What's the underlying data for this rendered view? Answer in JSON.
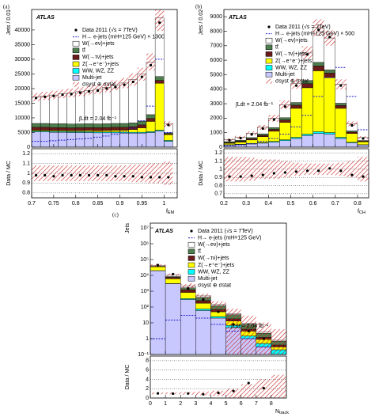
{
  "chart_data": [
    {
      "type": "histogram",
      "panel_label": "(a)",
      "experiment": "ATLAS",
      "luminosity": "∫Ldt = 2.04 fb⁻¹",
      "y_label": "Jets / 0.01",
      "ratio_label": "Data / MC",
      "x_label": {
        "main": "f",
        "sub": "EM"
      },
      "bins": [
        0.7,
        0.72,
        0.74,
        0.76,
        0.78,
        0.8,
        0.82,
        0.84,
        0.86,
        0.88,
        0.9,
        0.92,
        0.94,
        0.96,
        0.98,
        1.0,
        1.02
      ],
      "data": {
        "name": "Data 2011 (√s = 7TeV)",
        "color": "#000000",
        "values": [
          16800,
          17200,
          17500,
          17900,
          18100,
          18600,
          19000,
          19300,
          20000,
          20500,
          21300,
          22300,
          24000,
          28000,
          42500,
          7600
        ]
      },
      "signal": {
        "name": "H→ e-jets (mH=125 GeV) × 1300",
        "color": "#1a1acc",
        "values": [
          2000,
          2000,
          2200,
          2400,
          2600,
          2800,
          3000,
          3400,
          3800,
          4400,
          5200,
          6500,
          9000,
          14000,
          30000,
          5000
        ]
      },
      "series": [
        {
          "name": "W(→eν)+jets",
          "color": "#ffffff",
          "values": [
            9000,
            9400,
            9800,
            10200,
            10600,
            11000,
            11400,
            11800,
            12400,
            13000,
            13800,
            14800,
            16000,
            18000,
            20000,
            3000
          ]
        },
        {
          "name": "tt̄",
          "color": "#4e7d4e",
          "values": [
            1300,
            1300,
            1300,
            1300,
            1300,
            1300,
            1300,
            1300,
            1300,
            1300,
            1300,
            1300,
            1300,
            1300,
            1300,
            300
          ]
        },
        {
          "name": "W(→τν)+jets",
          "color": "#6b1a1a",
          "values": [
            1000,
            1000,
            1000,
            1000,
            1000,
            1000,
            1000,
            1000,
            1000,
            1000,
            1000,
            1000,
            1000,
            1000,
            1000,
            300
          ]
        },
        {
          "name": "Z(→e⁺e⁻)+jets",
          "color": "#ffff00",
          "values": [
            300,
            300,
            300,
            300,
            300,
            350,
            400,
            450,
            500,
            600,
            700,
            900,
            1500,
            3500,
            16000,
            2000
          ]
        },
        {
          "name": "WW, WZ, ZZ",
          "color": "#00ffff",
          "values": [
            300,
            300,
            300,
            300,
            300,
            300,
            300,
            300,
            300,
            300,
            300,
            300,
            300,
            300,
            300,
            300
          ]
        },
        {
          "name": "Multi-jet",
          "color": "#c8c8ff",
          "values": [
            5200,
            5200,
            5100,
            5100,
            5000,
            5000,
            5000,
            4900,
            4900,
            4900,
            4800,
            4800,
            4800,
            5000,
            5500,
            2000
          ]
        }
      ],
      "uncertainty": {
        "name": "σsyst ⊕ σstat",
        "color": "#cc2222",
        "values": [
          0.08,
          0.08,
          0.08,
          0.08,
          0.08,
          0.08,
          0.08,
          0.08,
          0.08,
          0.08,
          0.08,
          0.09,
          0.09,
          0.1,
          0.1,
          0.12
        ]
      },
      "ratio": {
        "values": [
          0.98,
          0.98,
          0.97,
          0.98,
          0.98,
          0.98,
          0.98,
          0.98,
          0.98,
          0.97,
          0.97,
          0.97,
          0.96,
          0.96,
          0.96,
          0.96
        ],
        "ylim": [
          0.75,
          1.25
        ],
        "yticks": [
          0.8,
          0.9,
          1,
          1.1,
          1.2
        ]
      },
      "xlim": [
        0.7,
        1.03
      ],
      "xticks": [
        0.7,
        0.75,
        0.8,
        0.85,
        0.9,
        0.95,
        1
      ],
      "ylim": [
        0,
        47000
      ],
      "yticks": [
        0,
        5000,
        10000,
        15000,
        20000,
        25000,
        30000,
        35000,
        40000
      ],
      "log": false
    },
    {
      "type": "histogram",
      "panel_label": "(b)",
      "experiment": "ATLAS",
      "luminosity": "∫Ldt = 2.04 fb⁻¹",
      "y_label": "Jets / 0.02",
      "ratio_label": "Data / MC",
      "x_label": {
        "main": "f",
        "sub": "CH"
      },
      "bins": [
        0.2,
        0.25,
        0.3,
        0.35,
        0.4,
        0.45,
        0.5,
        0.55,
        0.6,
        0.65,
        0.7,
        0.75,
        0.8,
        0.85
      ],
      "data": {
        "name": "Data 2011 (√s = 7TeV)",
        "color": "#000000",
        "values": [
          480,
          620,
          880,
          1280,
          1900,
          2800,
          4250,
          6400,
          8100,
          7600,
          4250,
          1500,
          600
        ]
      },
      "signal": {
        "name": "H→ e-jets (mH=125 GeV) × 500",
        "color": "#1a1acc",
        "values": [
          100,
          150,
          250,
          400,
          600,
          900,
          1400,
          2200,
          3500,
          4800,
          5500,
          3500,
          1200
        ]
      },
      "series": [
        {
          "name": "W(→eν)+jets",
          "color": "#ffffff",
          "values": [
            150,
            200,
            300,
            450,
            650,
            900,
            1300,
            1900,
            2400,
            2200,
            1300,
            500,
            200
          ]
        },
        {
          "name": "tt̄",
          "color": "#4e7d4e",
          "values": [
            60,
            70,
            80,
            100,
            120,
            150,
            180,
            220,
            250,
            220,
            150,
            80,
            40
          ]
        },
        {
          "name": "W(→τν)+jets",
          "color": "#6b1a1a",
          "values": [
            50,
            60,
            80,
            100,
            130,
            170,
            220,
            280,
            330,
            300,
            200,
            100,
            50
          ]
        },
        {
          "name": "Z(→e⁺e⁻)+jets",
          "color": "#ffff00",
          "values": [
            100,
            150,
            250,
            400,
            700,
            1200,
            2000,
            3200,
            4200,
            3800,
            2000,
            600,
            200
          ]
        },
        {
          "name": "WW, WZ, ZZ",
          "color": "#00ffff",
          "values": [
            20,
            20,
            30,
            40,
            50,
            60,
            80,
            100,
            120,
            110,
            80,
            40,
            20
          ]
        },
        {
          "name": "Multi-jet",
          "color": "#c8c8ff",
          "values": [
            150,
            180,
            220,
            280,
            350,
            450,
            600,
            800,
            950,
            900,
            600,
            300,
            150
          ]
        }
      ],
      "uncertainty": {
        "name": "σsyst ⊕ σstat",
        "color": "#cc2222",
        "values": [
          0.15,
          0.15,
          0.14,
          0.12,
          0.12,
          0.1,
          0.08,
          0.07,
          0.07,
          0.07,
          0.08,
          0.1,
          0.15
        ]
      },
      "ratio": {
        "values": [
          0.91,
          0.91,
          0.92,
          0.93,
          0.95,
          0.96,
          0.97,
          0.98,
          0.98,
          1.01,
          0.98,
          0.93,
          0.91
        ],
        "ylim": [
          0.65,
          1.25
        ],
        "yticks": [
          0.7,
          0.8,
          0.9,
          1,
          1.1,
          1.2
        ]
      },
      "xlim": [
        0.2,
        0.85
      ],
      "xticks": [
        0.2,
        0.3,
        0.4,
        0.5,
        0.6,
        0.7,
        0.8
      ],
      "ylim": [
        0,
        9500
      ],
      "yticks": [
        0,
        1000,
        2000,
        3000,
        4000,
        5000,
        6000,
        7000,
        8000,
        9000
      ],
      "log": false
    },
    {
      "type": "histogram",
      "panel_label": "(c)",
      "experiment": "ATLAS",
      "luminosity": "∫Ldt = 2.04 fb⁻¹",
      "y_label": "Jets",
      "ratio_label": "Data / MC",
      "x_label": {
        "main": "N",
        "sub": "track"
      },
      "bins": [
        0,
        1,
        2,
        3,
        4,
        5,
        6,
        7,
        8,
        9
      ],
      "data": {
        "name": "Data 2011 (√s = 7TeV)",
        "color": "#000000",
        "values": [
          45000,
          12000,
          1500,
          300,
          50,
          8,
          3,
          1,
          null
        ]
      },
      "signal": {
        "name": "H→ e-jets (mH=125 GeV)",
        "color": "#1a1acc",
        "values": [
          1,
          15,
          30,
          20,
          8,
          3,
          1,
          0.3,
          0.1
        ]
      },
      "series": [
        {
          "name": "W(→eν)+jets",
          "color": "#ffffff",
          "values": [
            5000,
            2500,
            500,
            100,
            25,
            6,
            1.5,
            0.4,
            0.1
          ]
        },
        {
          "name": "tt̄",
          "color": "#4e7d4e",
          "values": [
            500,
            800,
            400,
            150,
            50,
            15,
            4,
            1,
            0.3
          ]
        },
        {
          "name": "W(→τν)+jets",
          "color": "#6b1a1a",
          "values": [
            2000,
            1500,
            400,
            80,
            20,
            5,
            1,
            0.3,
            0.1
          ]
        },
        {
          "name": "Z(→e⁺e⁻)+jets",
          "color": "#ffff00",
          "values": [
            15000,
            3000,
            500,
            100,
            25,
            6,
            1.5,
            0.4,
            0.1
          ]
        },
        {
          "name": "WW, WZ, ZZ",
          "color": "#00ffff",
          "values": [
            50,
            80,
            40,
            15,
            5,
            2,
            0.5,
            0.2,
            0.1
          ]
        },
        {
          "name": "Multi-jet",
          "color": "#c8c8ff",
          "values": [
            20000,
            3000,
            300,
            60,
            20,
            5,
            1,
            0.3,
            0.1
          ]
        }
      ],
      "uncertainty": {
        "name": "σsyst ⊕ σstat",
        "color": "#cc2222",
        "values": [
          0.2,
          0.2,
          0.3,
          0.4,
          0.6,
          1,
          2,
          3,
          4
        ]
      },
      "ratio": {
        "values": [
          1.0,
          0.93,
          0.97,
          0.8,
          1.1,
          1.5,
          3.2,
          2.1,
          null
        ],
        "ylim": [
          0,
          9
        ],
        "yticks": [
          0,
          2,
          4,
          6,
          8
        ]
      },
      "xlim": [
        0,
        9
      ],
      "xticks": [
        0,
        1,
        2,
        3,
        4,
        5,
        6,
        7,
        8
      ],
      "ylim": [
        0.1,
        20000000
      ],
      "yticks": [
        {
          "value": 0.1,
          "label": "10⁻¹"
        },
        1,
        10,
        {
          "value": 100,
          "label": "10²"
        },
        {
          "value": 1000,
          "label": "10³"
        },
        {
          "value": 10000,
          "label": "10⁴"
        },
        {
          "value": 100000,
          "label": "10⁵"
        },
        {
          "value": 1000000,
          "label": "10⁶"
        },
        {
          "value": 10000000,
          "label": "10⁷"
        }
      ],
      "log": true
    }
  ]
}
